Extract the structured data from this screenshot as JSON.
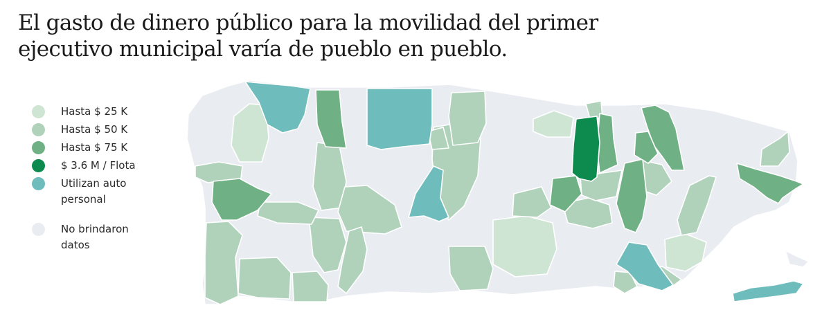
{
  "title": {
    "line1": "El gasto de dinero público para la movilidad del primer",
    "line2": "ejecutivo municipal varía de pueblo en pueblo."
  },
  "colors": {
    "hasta25k": "#cfe5d4",
    "hasta50k": "#b0d2bb",
    "hasta75k": "#70b085",
    "flota": "#0d8a4e",
    "auto": "#6fbcbc",
    "nodata": "#e9edf1"
  },
  "legend": [
    {
      "key": "hasta25k",
      "label": "Hasta $ 25 K",
      "color": "#cfe5d4"
    },
    {
      "key": "hasta50k",
      "label": "Hasta $ 50 K",
      "color": "#b0d2bb"
    },
    {
      "key": "hasta75k",
      "label": "Hasta $ 75 K",
      "color": "#70b085"
    },
    {
      "key": "flota",
      "label": "$ 3.6 M / Flota",
      "color": "#0d8a4e"
    },
    {
      "key": "auto",
      "label": "Utilizan auto personal",
      "color": "#6fbcbc"
    },
    {
      "key": "nodata",
      "label": "No brindaron datos",
      "color": "#e9edf1"
    }
  ]
}
